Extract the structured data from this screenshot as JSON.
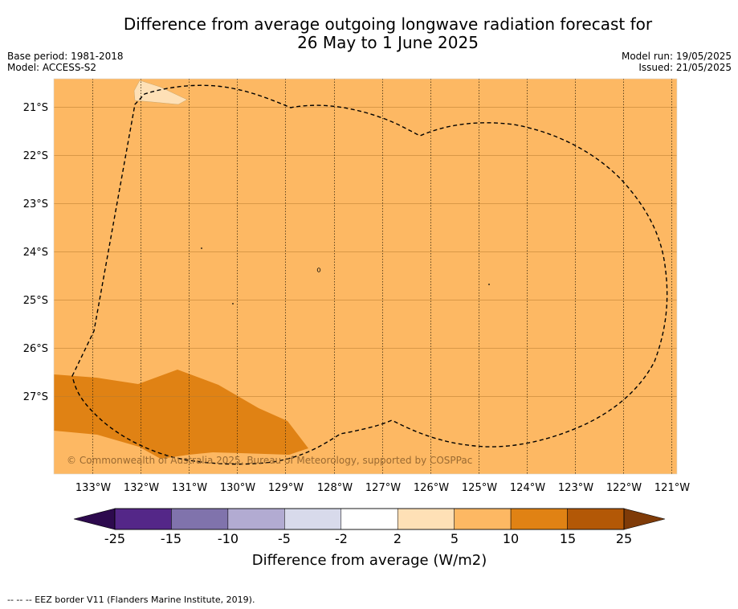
{
  "title_line1": "Difference from average outgoing longwave radiation forecast for",
  "title_line2": "26 May to 1 June 2025",
  "base_period": "Base period: 1981-2018",
  "model": "Model: ACCESS-S2",
  "model_run": "Model run: 19/05/2025",
  "issued": "Issued: 21/05/2025",
  "copyright": "© Commonwealth of Australia 2025, Bureau of Meteorology, supported by COSPPac",
  "lat_labels": [
    "21°S",
    "22°S",
    "23°S",
    "24°S",
    "25°S",
    "26°S",
    "27°S"
  ],
  "lon_labels": [
    "133°W",
    "132°W",
    "131°W",
    "130°W",
    "129°W",
    "128°W",
    "127°W",
    "126°W",
    "125°W",
    "124°W",
    "123°W",
    "122°W",
    "121°W"
  ],
  "colorbar": {
    "title": "Difference from average (W/m2)",
    "tick_labels": [
      "-25",
      "-15",
      "-10",
      "-5",
      "-2",
      "2",
      "5",
      "10",
      "15",
      "25"
    ],
    "colors": [
      "#2d0a4e",
      "#542788",
      "#8073ac",
      "#b2abd2",
      "#d8daeb",
      "#ffffff",
      "#fee0b6",
      "#fdb863",
      "#e08214",
      "#b35806",
      "#7f3b08"
    ]
  },
  "map_colors": {
    "range_5_10": "#fdb863",
    "range_10_15": "#e08214",
    "range_2_5": "#fee0b6"
  },
  "footer": "--  --  -- EEZ border V11 (Flanders Marine Institute, 2019)."
}
